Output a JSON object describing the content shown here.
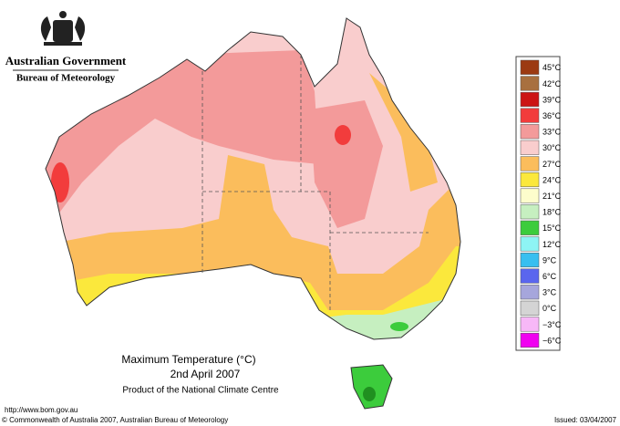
{
  "header": {
    "agency": "Australian Government",
    "bureau": "Bureau of Meteorology"
  },
  "map": {
    "title": "Maximum Temperature (°C)",
    "date": "2nd April 2007",
    "product": "Product of the National Climate Centre"
  },
  "legend": [
    {
      "label": "45°C",
      "color": "#9c3a12"
    },
    {
      "label": "42°C",
      "color": "#a8703f"
    },
    {
      "label": "39°C",
      "color": "#cc1414"
    },
    {
      "label": "36°C",
      "color": "#f23c3c"
    },
    {
      "label": "33°C",
      "color": "#f39a9a"
    },
    {
      "label": "30°C",
      "color": "#f9cdcd"
    },
    {
      "label": "27°C",
      "color": "#fbbd5c"
    },
    {
      "label": "24°C",
      "color": "#fbe83c"
    },
    {
      "label": "21°C",
      "color": "#fdfdcc"
    },
    {
      "label": "18°C",
      "color": "#c6efc0"
    },
    {
      "label": "15°C",
      "color": "#3ccc3c"
    },
    {
      "label": "12°C",
      "color": "#8ef4f4"
    },
    {
      "label": "9°C",
      "color": "#38bff0"
    },
    {
      "label": "6°C",
      "color": "#5a66ee"
    },
    {
      "label": "3°C",
      "color": "#a6a6dc"
    },
    {
      "label": "0°C",
      "color": "#d4d4d4"
    },
    {
      "label": "−3°C",
      "color": "#f7b8f7"
    },
    {
      "label": "−6°C",
      "color": "#f000f0"
    }
  ],
  "footer": {
    "url": "http://www.bom.gov.au",
    "copyright": "© Commonwealth of Australia 2007, Australian Bureau of Meteorology",
    "issued": "Issued: 03/04/2007"
  }
}
